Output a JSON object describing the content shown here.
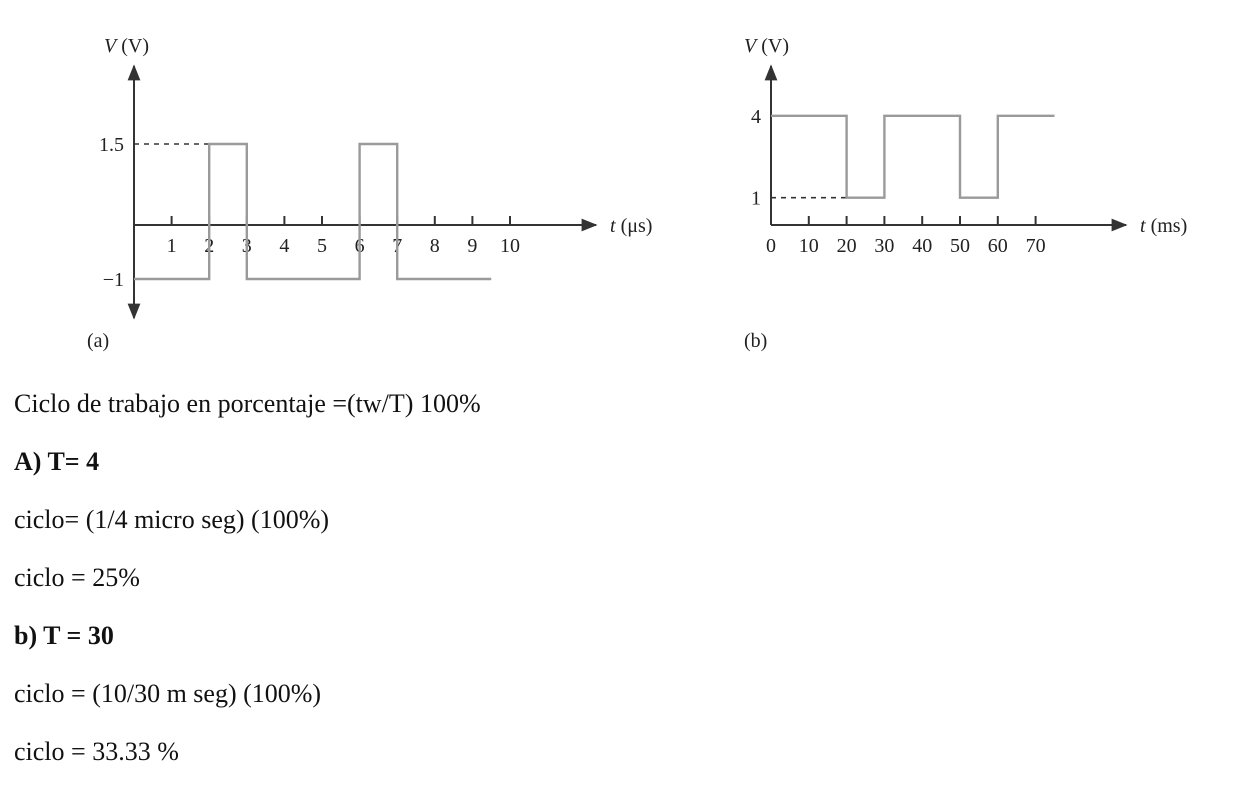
{
  "chart_data": [
    {
      "type": "line",
      "panel_label": "(a)",
      "ylabel_var": "V",
      "ylabel_unit": "(V)",
      "xlabel_var": "t",
      "xlabel_unit": "(μs)",
      "x_ticks": [
        1,
        2,
        3,
        4,
        5,
        6,
        7,
        8,
        9,
        10
      ],
      "x_tick_labels": [
        "1",
        "2",
        "3",
        "4",
        "5",
        "6",
        "7",
        "8",
        "9",
        "10"
      ],
      "y_tick_labels": [
        {
          "value": 1.5,
          "label": "1.5"
        },
        {
          "value": -1,
          "label": "−1"
        }
      ],
      "xlim": [
        0,
        12.5
      ],
      "ylim": [
        -1.5,
        3.0
      ],
      "grid": false,
      "dashed_reference": [
        {
          "y": 1.5,
          "from_x": 0,
          "to_x": 2
        }
      ],
      "series": [
        {
          "x": [
            0,
            2,
            2,
            3,
            3,
            6,
            6,
            7,
            7,
            9.5
          ],
          "y": [
            -1,
            -1,
            1.5,
            1.5,
            -1,
            -1,
            1.5,
            1.5,
            -1,
            -1
          ]
        }
      ]
    },
    {
      "type": "line",
      "panel_label": "(b)",
      "ylabel_var": "V",
      "ylabel_unit": "(V)",
      "xlabel_var": "t",
      "xlabel_unit": "(ms)",
      "x_ticks": [
        0,
        10,
        20,
        30,
        40,
        50,
        60,
        70
      ],
      "x_tick_labels": [
        "0",
        "10",
        "20",
        "30",
        "40",
        "50",
        "60",
        "70"
      ],
      "y_tick_labels": [
        {
          "value": 4,
          "label": "4"
        },
        {
          "value": 1,
          "label": "1"
        }
      ],
      "xlim": [
        0,
        98
      ],
      "ylim": [
        0,
        5.5
      ],
      "grid": false,
      "dashed_reference": [
        {
          "y": 1,
          "from_x": 0,
          "to_x": 20
        }
      ],
      "series": [
        {
          "x": [
            0,
            20,
            20,
            30,
            30,
            50,
            50,
            60,
            60,
            75
          ],
          "y": [
            4,
            4,
            1,
            1,
            4,
            4,
            1,
            1,
            4,
            4
          ]
        }
      ]
    }
  ],
  "text": {
    "formula": "Ciclo de trabajo en porcentaje =(tw/T) 100%",
    "a_heading": "A) T= 4",
    "a_line1": "ciclo= (1/4 micro seg) (100%)",
    "a_line2": "ciclo = 25%",
    "b_heading": "b) T = 30",
    "b_line1": "ciclo = (10/30 m seg) (100%)",
    "b_line2": "ciclo = 33.33 %"
  }
}
